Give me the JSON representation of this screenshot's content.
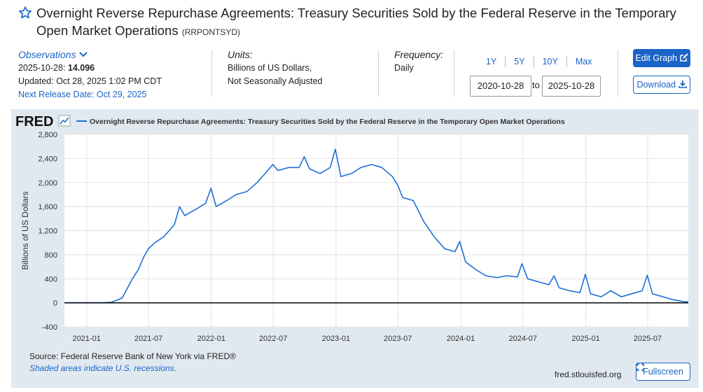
{
  "header": {
    "title": "Overnight Reverse Repurchase Agreements: Treasury Securities Sold by the Federal Reserve in the Temporary Open Market Operations",
    "series_id": "(RRPONTSYD)"
  },
  "observations": {
    "label": "Observations",
    "date": "2025-10-28:",
    "value": "14.096",
    "updated": "Updated: Oct 28, 2025 1:02 PM CDT",
    "next_release": "Next Release Date: Oct 29, 2025"
  },
  "units": {
    "label": "Units:",
    "line1": "Billions of US Dollars,",
    "line2": "Not Seasonally Adjusted"
  },
  "frequency": {
    "label": "Frequency:",
    "value": "Daily"
  },
  "range": {
    "links": [
      "1Y",
      "5Y",
      "10Y",
      "Max"
    ],
    "start": "2020-10-28",
    "to": "to",
    "end": "2025-10-28"
  },
  "buttons": {
    "edit": "Edit Graph",
    "download": "Download",
    "fullscreen": "Fullscreen"
  },
  "footer": {
    "source": "Source: Federal Reserve Bank of New York via FRED®",
    "recession_note": "Shaded areas indicate U.S. recessions.",
    "url": "fred.stlouisfed.org"
  },
  "colors": {
    "accent": "#1a64c8",
    "series": "#1f6fd6",
    "panel": "#e1e9f0"
  },
  "chart_data": {
    "type": "line",
    "brand": "FRED",
    "legend": "Overnight Reverse Repurchase Agreements: Treasury Securities Sold by the Federal Reserve in the Temporary Open Market Operations",
    "ylabel": "Billions of US Dollars",
    "ylim": [
      -400,
      2800
    ],
    "yticks": [
      -400,
      0,
      400,
      800,
      1200,
      1600,
      2000,
      2400,
      2800
    ],
    "ytick_labels": [
      "-400",
      "0",
      "400",
      "800",
      "1,200",
      "1,600",
      "2,000",
      "2,400",
      "2,800"
    ],
    "xlim": [
      "2020-10-28",
      "2025-10-28"
    ],
    "xticks": [
      "2021-01",
      "2021-07",
      "2022-01",
      "2022-07",
      "2023-01",
      "2023-07",
      "2024-01",
      "2024-07",
      "2025-01",
      "2025-07"
    ],
    "grid": true,
    "series": [
      {
        "name": "RRPONTSYD",
        "x": [
          "2020-10-28",
          "2020-12-15",
          "2021-02-15",
          "2021-03-15",
          "2021-04-15",
          "2021-05-15",
          "2021-06-01",
          "2021-06-17",
          "2021-07-01",
          "2021-07-20",
          "2021-08-15",
          "2021-09-15",
          "2021-09-30",
          "2021-10-15",
          "2021-11-15",
          "2021-12-15",
          "2021-12-31",
          "2022-01-15",
          "2022-02-15",
          "2022-03-15",
          "2022-04-15",
          "2022-05-15",
          "2022-06-15",
          "2022-06-30",
          "2022-07-15",
          "2022-08-15",
          "2022-09-15",
          "2022-09-30",
          "2022-10-15",
          "2022-11-15",
          "2022-12-15",
          "2022-12-30",
          "2023-01-15",
          "2023-02-15",
          "2023-03-15",
          "2023-04-15",
          "2023-05-15",
          "2023-06-15",
          "2023-07-01",
          "2023-07-15",
          "2023-08-15",
          "2023-09-15",
          "2023-10-15",
          "2023-11-15",
          "2023-12-15",
          "2023-12-29",
          "2024-01-15",
          "2024-02-15",
          "2024-03-15",
          "2024-04-15",
          "2024-05-15",
          "2024-06-15",
          "2024-06-28",
          "2024-07-15",
          "2024-08-15",
          "2024-09-15",
          "2024-09-30",
          "2024-10-15",
          "2024-11-15",
          "2024-12-15",
          "2024-12-31",
          "2025-01-15",
          "2025-02-15",
          "2025-03-15",
          "2025-04-15",
          "2025-05-15",
          "2025-06-15",
          "2025-06-30",
          "2025-07-15",
          "2025-08-15",
          "2025-09-15",
          "2025-10-15",
          "2025-10-28"
        ],
        "values": [
          1,
          0,
          2,
          10,
          80,
          400,
          550,
          760,
          900,
          1000,
          1100,
          1300,
          1600,
          1450,
          1550,
          1650,
          1904,
          1600,
          1700,
          1800,
          1850,
          2000,
          2200,
          2300,
          2200,
          2250,
          2250,
          2430,
          2230,
          2150,
          2250,
          2554,
          2100,
          2150,
          2250,
          2300,
          2250,
          2100,
          1950,
          1750,
          1700,
          1350,
          1100,
          900,
          850,
          1020,
          680,
          550,
          450,
          420,
          450,
          430,
          650,
          400,
          350,
          300,
          450,
          250,
          200,
          170,
          475,
          150,
          100,
          200,
          100,
          150,
          200,
          460,
          150,
          100,
          50,
          20,
          14
        ]
      }
    ]
  }
}
